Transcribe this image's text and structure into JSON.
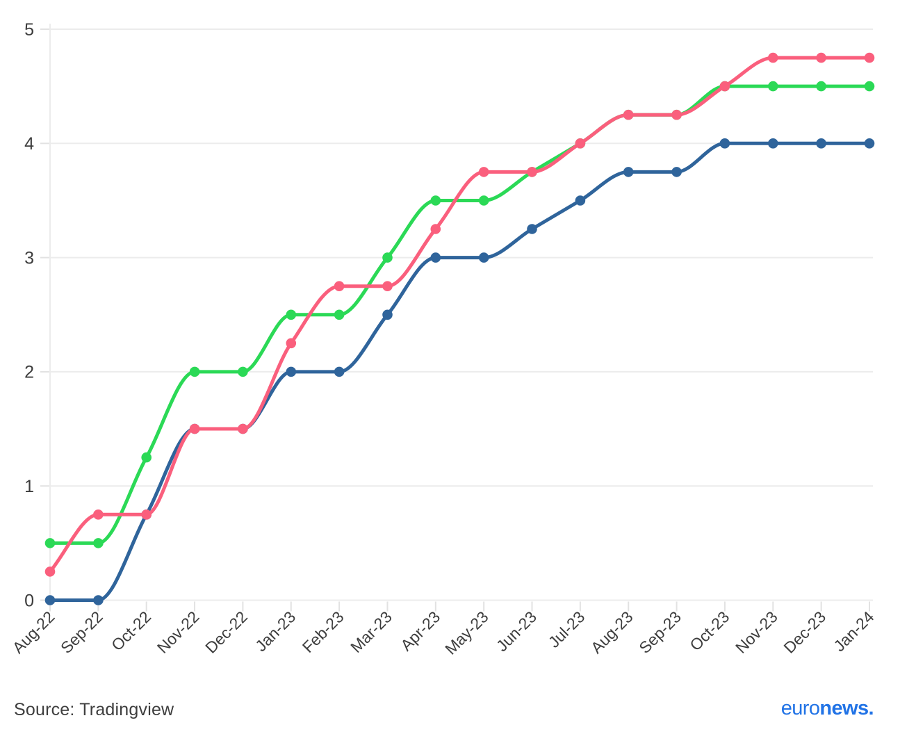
{
  "chart_data": {
    "type": "line",
    "title": "",
    "xlabel": "",
    "ylabel": "",
    "x_categories": [
      "Aug-22",
      "Sep-22",
      "Oct-22",
      "Nov-22",
      "Dec-22",
      "Jan-23",
      "Feb-23",
      "Mar-23",
      "Apr-23",
      "May-23",
      "Jun-23",
      "Jul-23",
      "Aug-23",
      "Sep-23",
      "Oct-23",
      "Nov-23",
      "Dec-23",
      "Jan-24"
    ],
    "series": [
      {
        "name": "green-line",
        "color": "#2BD956",
        "values": [
          0.5,
          0.5,
          1.25,
          2.0,
          2.0,
          2.5,
          2.5,
          3.0,
          3.5,
          3.5,
          3.75,
          4.0,
          4.25,
          4.25,
          4.5,
          4.5,
          4.5,
          4.5
        ]
      },
      {
        "name": "blue-line",
        "color": "#2F649B",
        "values": [
          0.0,
          0.0,
          0.75,
          1.5,
          1.5,
          2.0,
          2.0,
          2.5,
          3.0,
          3.0,
          3.25,
          3.5,
          3.75,
          3.75,
          4.0,
          4.0,
          4.0,
          4.0
        ]
      },
      {
        "name": "pink-line",
        "color": "#FA5F7D",
        "values": [
          0.25,
          0.75,
          0.75,
          1.5,
          1.5,
          2.25,
          2.75,
          2.75,
          3.25,
          3.75,
          3.75,
          4.0,
          4.25,
          4.25,
          4.5,
          4.75,
          4.75,
          4.75
        ]
      }
    ],
    "ylim": [
      0,
      5
    ],
    "yticks": [
      "0",
      "1",
      "2",
      "3",
      "4",
      "5"
    ],
    "grid": "horizontal",
    "legend": "none",
    "marker": "circle"
  },
  "styles": {
    "grid_color": "#ECECEC",
    "tick_color": "#E2E2E2",
    "axis_line_color": "#ECECEC",
    "axis_text_color": "#3D3D3D"
  },
  "footer": {
    "source": "Source: Tradingview"
  },
  "brand": {
    "euro": "euro",
    "news": "news",
    "dot": ".",
    "color": "#2173E6"
  }
}
